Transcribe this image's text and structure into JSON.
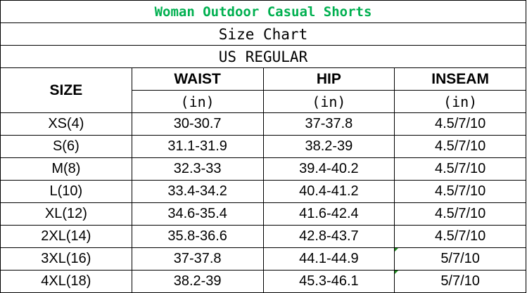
{
  "title": "Woman Outdoor Casual Shorts",
  "subtitle": "Size Chart",
  "region": "US REGULAR",
  "colors": {
    "title": "#00b050",
    "text": "#000000",
    "border": "#000000"
  },
  "columns": {
    "size": "SIZE",
    "waist": "WAIST",
    "hip": "HIP",
    "inseam": "INSEAM",
    "unit": "(in)"
  },
  "rows": [
    {
      "size": "XS(4)",
      "waist": "30-30.7",
      "hip": "37-37.8",
      "inseam": "4.5/7/10"
    },
    {
      "size": "S(6)",
      "waist": "31.1-31.9",
      "hip": "38.2-39",
      "inseam": "4.5/7/10"
    },
    {
      "size": "M(8)",
      "waist": "32.3-33",
      "hip": "39.4-40.2",
      "inseam": "4.5/7/10"
    },
    {
      "size": "L(10)",
      "waist": "33.4-34.2",
      "hip": "40.4-41.2",
      "inseam": "4.5/7/10"
    },
    {
      "size": "XL(12)",
      "waist": "34.6-35.4",
      "hip": "41.6-42.4",
      "inseam": "4.5/7/10"
    },
    {
      "size": "2XL(14)",
      "waist": "35.8-36.6",
      "hip": "42.8-43.7",
      "inseam": "4.5/7/10"
    },
    {
      "size": "3XL(16)",
      "waist": "37-37.8",
      "hip": "44.1-44.9",
      "inseam": "5/7/10"
    },
    {
      "size": "4XL(18)",
      "waist": "38.2-39",
      "hip": "45.3-46.1",
      "inseam": "5/7/10"
    }
  ]
}
